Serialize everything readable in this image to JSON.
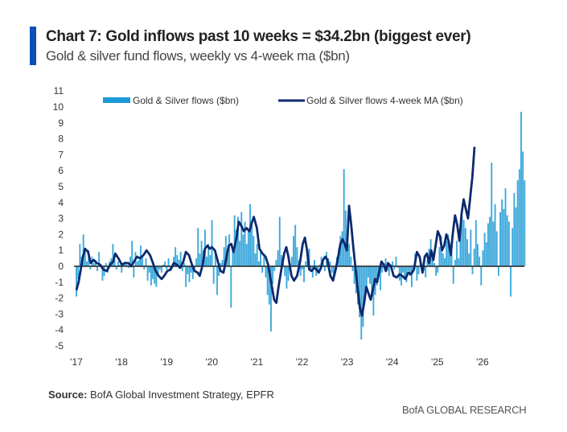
{
  "header": {
    "title": "Chart 7: Gold inflows past 10 weeks = $34.2bn (biggest ever)",
    "subtitle": "Gold & silver fund flows, weekly vs 4-week ma ($bn)"
  },
  "footer": {
    "source_label": "Source:",
    "source_text": " BofA Global Investment Strategy, EPFR",
    "brand": "BofA GLOBAL RESEARCH"
  },
  "colors": {
    "accent": "#0b4fb8",
    "bars": "#1a9ad6",
    "line": "#0d2a6e",
    "zero_line": "#222222"
  },
  "chart_data": {
    "type": "bar",
    "title": "Chart 7: Gold inflows past 10 weeks = $34.2bn (biggest ever)",
    "subtitle": "Gold & silver fund flows, weekly vs 4-week ma ($bn)",
    "xlabel": "",
    "ylabel": "",
    "ylim": [
      -5,
      11
    ],
    "yticks": [
      11,
      10,
      9,
      8,
      7,
      6,
      5,
      4,
      3,
      2,
      1,
      0,
      -1,
      -2,
      -3,
      -4,
      -5
    ],
    "xlim": [
      2017,
      2026.9
    ],
    "xticks": [
      2017,
      2018,
      2019,
      2020,
      2021,
      2022,
      2023,
      2024,
      2025,
      2026
    ],
    "xtick_labels": [
      "'17",
      "'18",
      "'19",
      "'20",
      "'21",
      "'22",
      "'23",
      "'24",
      "'25",
      "'26"
    ],
    "grid": false,
    "legend": {
      "position": "top",
      "entries": [
        "Gold & Silver flows ($bn)",
        "Gold & Silver flows 4-week MA ($bn)"
      ]
    },
    "series": [
      {
        "name": "Gold & Silver flows ($bn)",
        "kind": "bar",
        "x_start": 2017.0,
        "x_step": 0.0385,
        "values": [
          -1.9,
          -0.8,
          1.4,
          0.6,
          2.0,
          0.9,
          0.3,
          1.0,
          -0.2,
          0.6,
          0.2,
          0.4,
          -0.3,
          0.9,
          0.1,
          -0.9,
          -0.6,
          0.2,
          -0.4,
          0.3,
          0.5,
          1.4,
          0.4,
          -0.2,
          0.3,
          0.1,
          -0.4,
          0.2,
          0.3,
          0.1,
          -0.1,
          0.6,
          1.6,
          -0.7,
          0.9,
          0.3,
          0.4,
          1.3,
          0.7,
          -0.2,
          0.5,
          -0.9,
          -0.4,
          -1.2,
          -0.8,
          -1.1,
          -1.3,
          -0.6,
          -0.2,
          -0.4,
          0.1,
          0.3,
          -0.2,
          0.5,
          -0.3,
          -0.1,
          0.6,
          1.2,
          0.7,
          0.4,
          0.9,
          -0.3,
          0.2,
          -1.3,
          -0.5,
          -1.0,
          -0.4,
          -0.8,
          -0.3,
          0.5,
          2.4,
          0.8,
          1.6,
          1.0,
          2.3,
          0.6,
          1.4,
          0.7,
          2.9,
          -1.1,
          0.9,
          -1.8,
          -0.6,
          0.2,
          0.4,
          1.2,
          1.9,
          0.9,
          2.0,
          -2.6,
          1.2,
          3.2,
          2.3,
          3.1,
          1.6,
          3.4,
          2.0,
          2.8,
          1.4,
          2.2,
          3.9,
          2.6,
          1.9,
          0.8,
          1.4,
          0.3,
          0.9,
          -0.4,
          0.6,
          -0.7,
          -1.8,
          -2.4,
          -4.1,
          -1.1,
          -0.3,
          0.4,
          1.0,
          3.1,
          0.7,
          0.3,
          -0.6,
          -1.4,
          -0.9,
          -0.3,
          0.6,
          1.9,
          2.6,
          1.2,
          0.4,
          -0.6,
          -0.2,
          -1.0,
          0.3,
          0.8,
          1.1,
          -0.2,
          -0.7,
          0.4,
          -0.6,
          -0.3,
          0.1,
          0.6,
          0.2,
          -0.3,
          0.9,
          0.5,
          0.3,
          -0.4,
          -0.9,
          -0.2,
          0.6,
          1.1,
          1.9,
          2.2,
          6.1,
          3.5,
          2.1,
          1.4,
          0.6,
          -0.3,
          -1.1,
          -1.7,
          -2.4,
          -3.2,
          -4.6,
          -3.8,
          -2.2,
          -1.6,
          -0.7,
          -1.1,
          -1.9,
          -3.1,
          -1.8,
          -1.2,
          -0.6,
          -1.5,
          -0.4,
          0.2,
          0.5,
          -0.3,
          -0.6,
          0.1,
          0.3,
          -0.2,
          0.6,
          -0.1,
          -0.9,
          -1.2,
          -0.4,
          -0.7,
          -1.0,
          -0.3,
          -0.6,
          -1.3,
          -0.4,
          0.8,
          -0.9,
          -0.5,
          0.2,
          -0.4,
          -0.3,
          -0.7,
          0.4,
          1.1,
          1.7,
          0.9,
          0.2,
          -0.6,
          -0.4,
          1.2,
          1.9,
          0.8,
          0.5,
          1.6,
          2.0,
          0.7,
          1.3,
          -1.1,
          0.4,
          1.6,
          0.5,
          2.6,
          3.1,
          2.9,
          2.4,
          1.7,
          0.8,
          2.3,
          -0.5,
          1.1,
          2.9,
          1.4,
          0.6,
          -1.2,
          1.0,
          2.1,
          1.5,
          2.7,
          3.1,
          6.5,
          2.8,
          3.9,
          2.2,
          -0.6,
          3.4,
          4.2,
          3.6,
          4.9,
          3.2,
          2.8,
          -1.9,
          2.4,
          4.6,
          3.7,
          5.4,
          6.1,
          9.7,
          7.2,
          5.4
        ]
      },
      {
        "name": "Gold & Silver flows 4-week MA ($bn)",
        "kind": "line",
        "points": [
          [
            2017.0,
            -1.5
          ],
          [
            2017.05,
            -1.0
          ],
          [
            2017.1,
            -0.2
          ],
          [
            2017.15,
            0.6
          ],
          [
            2017.2,
            1.1
          ],
          [
            2017.27,
            0.9
          ],
          [
            2017.33,
            0.2
          ],
          [
            2017.4,
            0.4
          ],
          [
            2017.47,
            0.2
          ],
          [
            2017.55,
            0.1
          ],
          [
            2017.62,
            -0.2
          ],
          [
            2017.7,
            -0.3
          ],
          [
            2017.78,
            0.1
          ],
          [
            2017.85,
            0.3
          ],
          [
            2017.9,
            0.8
          ],
          [
            2017.97,
            0.5
          ],
          [
            2018.05,
            0.1
          ],
          [
            2018.12,
            0.2
          ],
          [
            2018.2,
            0.2
          ],
          [
            2018.27,
            0.0
          ],
          [
            2018.33,
            0.3
          ],
          [
            2018.4,
            0.6
          ],
          [
            2018.47,
            0.5
          ],
          [
            2018.55,
            0.7
          ],
          [
            2018.62,
            1.0
          ],
          [
            2018.7,
            0.7
          ],
          [
            2018.77,
            0.2
          ],
          [
            2018.83,
            -0.3
          ],
          [
            2018.9,
            -0.6
          ],
          [
            2018.97,
            -0.8
          ],
          [
            2019.03,
            -0.6
          ],
          [
            2019.1,
            -0.3
          ],
          [
            2019.18,
            -0.2
          ],
          [
            2019.25,
            0.2
          ],
          [
            2019.32,
            0.1
          ],
          [
            2019.4,
            -0.1
          ],
          [
            2019.47,
            0.3
          ],
          [
            2019.53,
            0.9
          ],
          [
            2019.6,
            0.7
          ],
          [
            2019.67,
            0.1
          ],
          [
            2019.73,
            -0.3
          ],
          [
            2019.8,
            -0.4
          ],
          [
            2019.85,
            -0.6
          ],
          [
            2019.92,
            0.1
          ],
          [
            2019.97,
            1.1
          ],
          [
            2020.03,
            1.3
          ],
          [
            2020.08,
            1.1
          ],
          [
            2020.13,
            1.2
          ],
          [
            2020.2,
            1.0
          ],
          [
            2020.27,
            0.3
          ],
          [
            2020.33,
            -0.3
          ],
          [
            2020.4,
            -0.4
          ],
          [
            2020.45,
            0.3
          ],
          [
            2020.52,
            1.3
          ],
          [
            2020.58,
            1.4
          ],
          [
            2020.63,
            0.9
          ],
          [
            2020.7,
            1.8
          ],
          [
            2020.75,
            2.8
          ],
          [
            2020.8,
            2.6
          ],
          [
            2020.87,
            2.2
          ],
          [
            2020.93,
            2.4
          ],
          [
            2021.0,
            2.2
          ],
          [
            2021.05,
            2.7
          ],
          [
            2021.1,
            3.1
          ],
          [
            2021.17,
            2.4
          ],
          [
            2021.23,
            1.1
          ],
          [
            2021.3,
            0.8
          ],
          [
            2021.37,
            0.6
          ],
          [
            2021.43,
            0.1
          ],
          [
            2021.5,
            -1.0
          ],
          [
            2021.57,
            -2.1
          ],
          [
            2021.62,
            -2.3
          ],
          [
            2021.67,
            -1.3
          ],
          [
            2021.73,
            -0.3
          ],
          [
            2021.8,
            0.8
          ],
          [
            2021.85,
            1.2
          ],
          [
            2021.9,
            0.6
          ],
          [
            2021.97,
            -0.6
          ],
          [
            2022.03,
            -0.9
          ],
          [
            2022.1,
            -0.6
          ],
          [
            2022.17,
            0.3
          ],
          [
            2022.23,
            1.4
          ],
          [
            2022.28,
            1.8
          ],
          [
            2022.33,
            1.0
          ],
          [
            2022.38,
            -0.2
          ],
          [
            2022.43,
            -0.3
          ],
          [
            2022.5,
            -0.1
          ],
          [
            2022.55,
            -0.2
          ],
          [
            2022.6,
            -0.4
          ],
          [
            2022.65,
            -0.1
          ],
          [
            2022.7,
            0.4
          ],
          [
            2022.75,
            0.6
          ],
          [
            2022.8,
            0.4
          ],
          [
            2022.87,
            -0.6
          ],
          [
            2022.93,
            -0.9
          ],
          [
            2023.0,
            -0.1
          ],
          [
            2023.05,
            0.6
          ],
          [
            2023.1,
            1.4
          ],
          [
            2023.15,
            1.7
          ],
          [
            2023.2,
            1.4
          ],
          [
            2023.25,
            1.0
          ],
          [
            2023.3,
            3.8
          ],
          [
            2023.35,
            2.6
          ],
          [
            2023.4,
            1.2
          ],
          [
            2023.45,
            -0.1
          ],
          [
            2023.5,
            -1.4
          ],
          [
            2023.55,
            -2.6
          ],
          [
            2023.6,
            -3.1
          ],
          [
            2023.65,
            -2.3
          ],
          [
            2023.7,
            -1.3
          ],
          [
            2023.75,
            -1.7
          ],
          [
            2023.8,
            -2.1
          ],
          [
            2023.85,
            -1.5
          ],
          [
            2023.9,
            -0.8
          ],
          [
            2023.95,
            -1.0
          ],
          [
            2024.0,
            -0.3
          ],
          [
            2024.05,
            0.3
          ],
          [
            2024.1,
            0.1
          ],
          [
            2024.15,
            -0.3
          ],
          [
            2024.2,
            0.2
          ],
          [
            2024.27,
            0.0
          ],
          [
            2024.33,
            -0.6
          ],
          [
            2024.4,
            -0.7
          ],
          [
            2024.47,
            -0.5
          ],
          [
            2024.53,
            -0.6
          ],
          [
            2024.6,
            -0.8
          ],
          [
            2024.67,
            -0.4
          ],
          [
            2024.73,
            -0.5
          ],
          [
            2024.8,
            -0.2
          ],
          [
            2024.87,
            0.9
          ],
          [
            2024.93,
            0.6
          ],
          [
            2025.0,
            -0.4
          ],
          [
            2025.05,
            0.6
          ],
          [
            2025.1,
            0.8
          ],
          [
            2025.15,
            0.2
          ],
          [
            2025.2,
            1.0
          ],
          [
            2025.25,
            0.4
          ],
          [
            2025.3,
            1.3
          ],
          [
            2025.35,
            2.2
          ],
          [
            2025.4,
            1.9
          ],
          [
            2025.45,
            1.0
          ],
          [
            2025.5,
            1.3
          ],
          [
            2025.55,
            2.0
          ],
          [
            2025.6,
            1.6
          ],
          [
            2025.65,
            0.7
          ],
          [
            2025.7,
            2.1
          ],
          [
            2025.75,
            3.2
          ],
          [
            2025.8,
            2.6
          ],
          [
            2025.85,
            1.6
          ],
          [
            2025.9,
            3.3
          ],
          [
            2025.95,
            4.2
          ],
          [
            2026.0,
            3.6
          ],
          [
            2026.05,
            3.0
          ],
          [
            2026.1,
            4.3
          ],
          [
            2026.15,
            5.6
          ],
          [
            2026.2,
            7.5
          ]
        ]
      }
    ]
  }
}
